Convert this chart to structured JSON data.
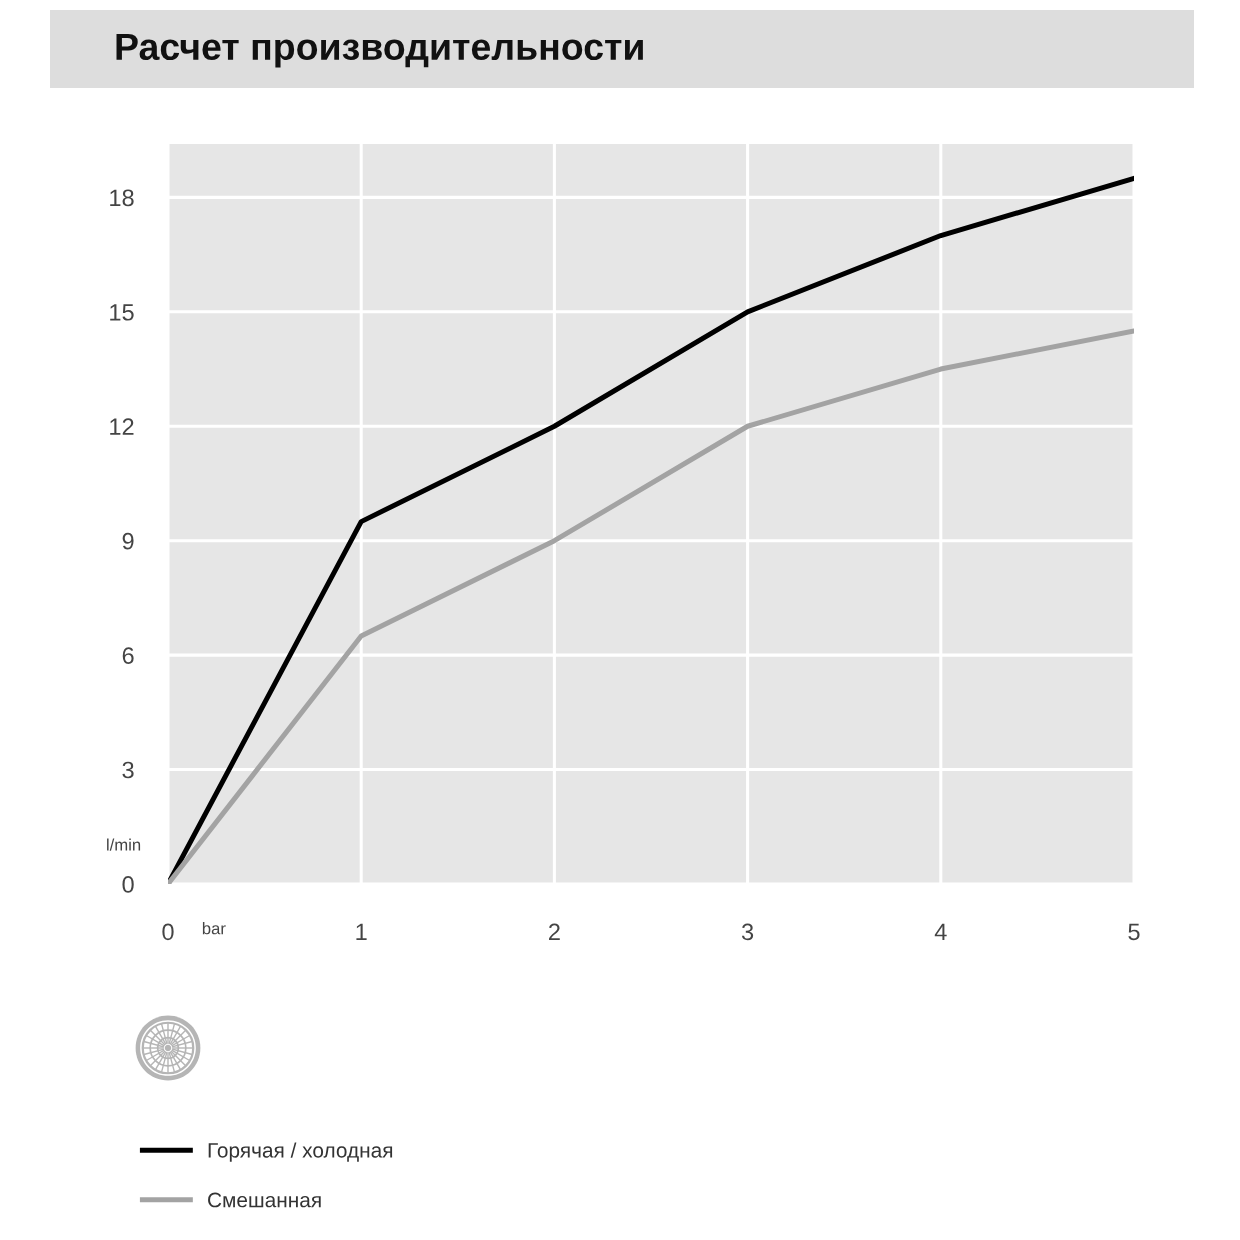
{
  "chart_data": {
    "type": "line",
    "title": "Расчет производительности",
    "xlabel": "bar",
    "ylabel": "l/min",
    "x": [
      0,
      1,
      2,
      3,
      4,
      5
    ],
    "series": [
      {
        "name": "Горячая / холодная",
        "color": "#000000",
        "values": [
          0,
          9.5,
          12,
          15,
          17,
          18.5
        ]
      },
      {
        "name": "Смешанная",
        "color": "#a3a3a3",
        "values": [
          0,
          6.5,
          9,
          12,
          13.5,
          14.5
        ]
      }
    ],
    "xlim": [
      0,
      5
    ],
    "ylim": [
      0,
      19.4
    ],
    "xticks": [
      0,
      1,
      2,
      3,
      4,
      5
    ],
    "yticks": [
      0,
      3,
      6,
      9,
      12,
      15,
      18
    ],
    "grid": true,
    "legend": "bottom left",
    "line_style": "solid"
  }
}
